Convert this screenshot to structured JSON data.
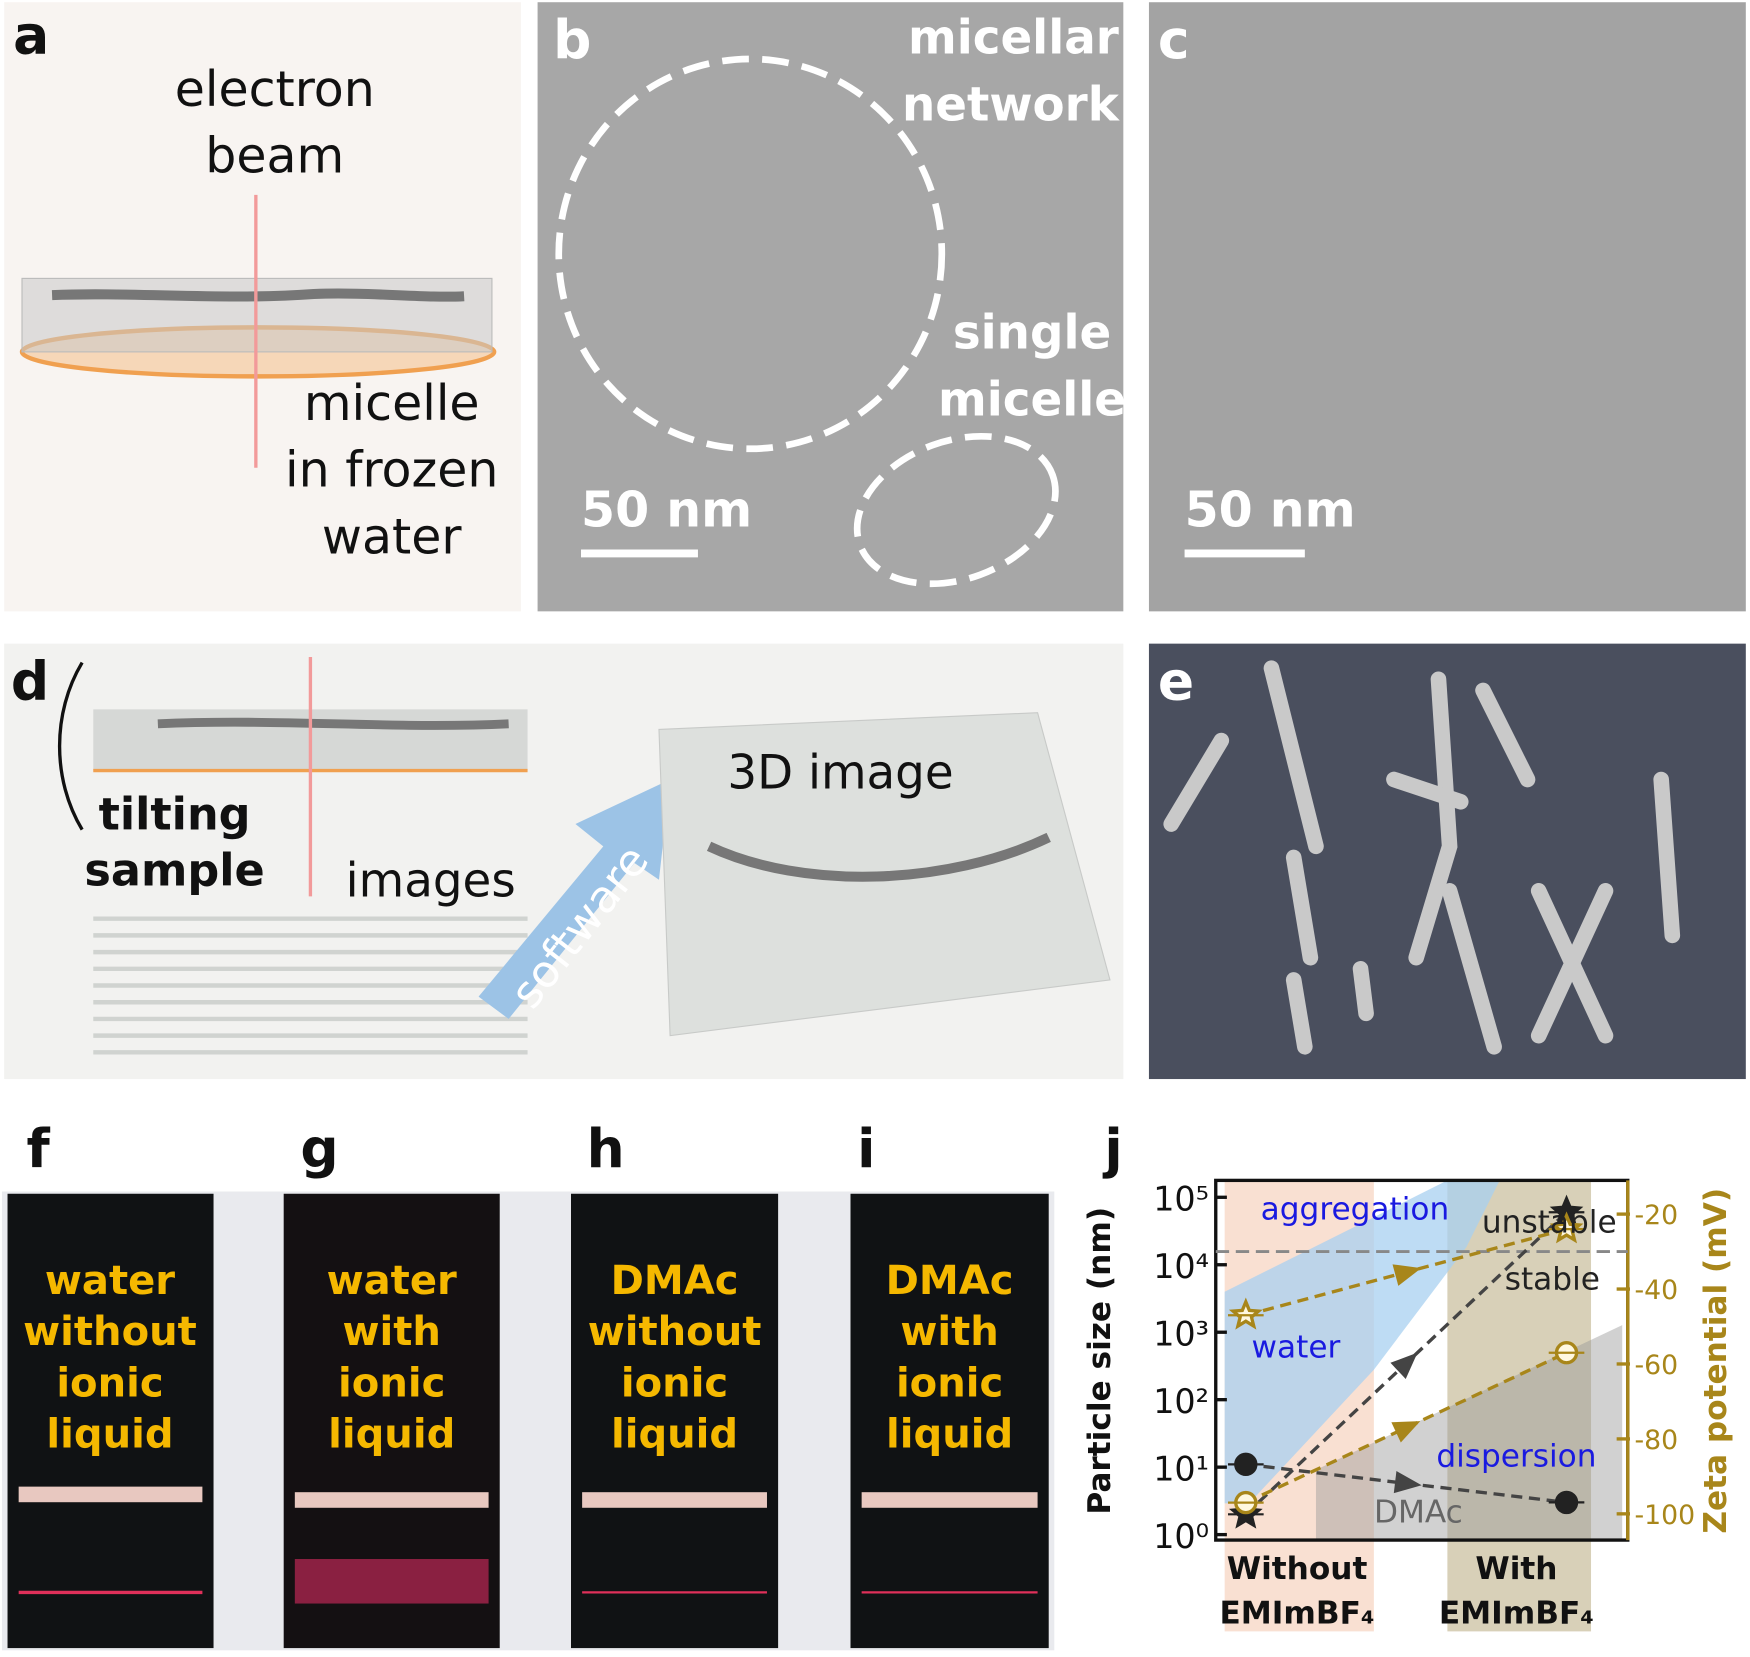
{
  "panels": {
    "a": {
      "label": "a",
      "beam": [
        "electron",
        "beam"
      ],
      "caption": [
        "micelle",
        "in frozen",
        "water"
      ]
    },
    "b": {
      "label": "b",
      "network": [
        "micellar",
        "network"
      ],
      "single": [
        "single",
        "micelle"
      ],
      "scale": "50 nm"
    },
    "c": {
      "label": "c",
      "scale": "50 nm"
    },
    "d": {
      "label": "d",
      "tilting": [
        "tilting",
        "sample"
      ],
      "images": "images",
      "software": "software",
      "result": "3D image"
    },
    "e": {
      "label": "e"
    },
    "f": {
      "label": "f",
      "text": [
        "water",
        "without",
        "ionic",
        "liquid"
      ]
    },
    "g": {
      "label": "g",
      "text": [
        "water",
        "with",
        "ionic",
        "liquid"
      ]
    },
    "h": {
      "label": "h",
      "text": [
        "DMAc",
        "without",
        "ionic",
        "liquid"
      ]
    },
    "i": {
      "label": "i",
      "text": [
        "DMAc",
        "with",
        "ionic",
        "liquid"
      ]
    }
  },
  "chart_data": {
    "type": "line",
    "panel_label": "j",
    "y_label": "Particle size (nm)",
    "y2_label": "Zeta potential (mV)",
    "categories": [
      "Without EMImBF₄",
      "With EMImBF₄"
    ],
    "log_y": true,
    "ylim": [
      0.83,
      178000
    ],
    "yticks": [
      {
        "value": 1,
        "label": "10⁰"
      },
      {
        "value": 10,
        "label": "10¹"
      },
      {
        "value": 100,
        "label": "10²"
      },
      {
        "value": 1000,
        "label": "10³"
      },
      {
        "value": 10000,
        "label": "10⁴"
      },
      {
        "value": 100000,
        "label": "10⁵"
      }
    ],
    "y2lim": [
      -107,
      -11
    ],
    "y2ticks": [
      -20,
      -40,
      -60,
      -80,
      -100
    ],
    "y2_reference": -30,
    "series": [
      {
        "marker": "star",
        "color": "#222222",
        "open": false,
        "values": [
          2,
          60000
        ]
      },
      {
        "marker": "star",
        "color": "#a8861a",
        "open": true,
        "axis": "y2",
        "values": [
          -47,
          -24
        ]
      },
      {
        "marker": "circle",
        "color": "#222222",
        "open": false,
        "values": [
          11,
          3
        ]
      },
      {
        "marker": "circle",
        "color": "#a8861a",
        "open": true,
        "axis": "y2",
        "values": [
          -97,
          -57
        ]
      }
    ],
    "annotations": [
      {
        "text": "aggregation",
        "color": "#1a1ae0"
      },
      {
        "text": "unstable",
        "color": "#222222"
      },
      {
        "text": "stable",
        "color": "#222222"
      },
      {
        "text": "water",
        "color": "#1a1ae0"
      },
      {
        "text": "dispersion",
        "color": "#1a1ae0"
      },
      {
        "text": "DMAc",
        "color": "#666666"
      }
    ]
  }
}
